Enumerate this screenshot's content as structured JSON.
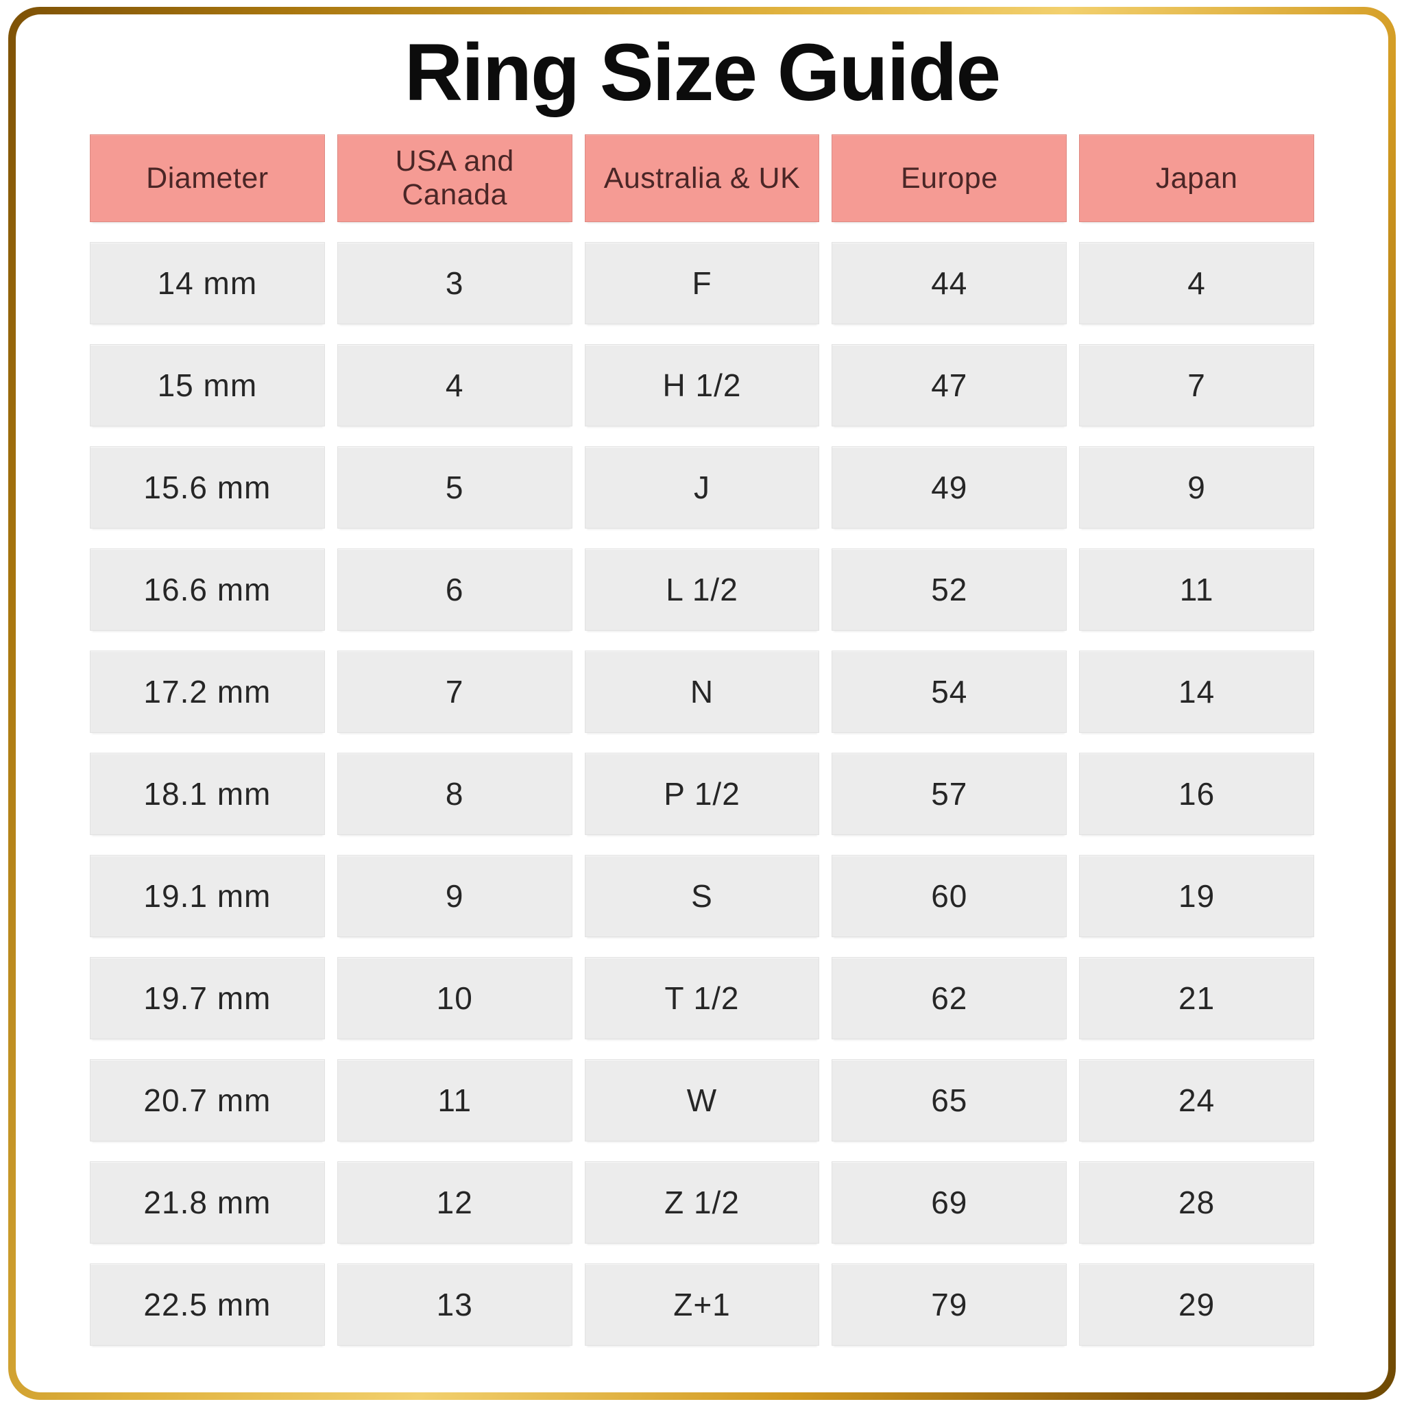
{
  "title": "Ring Size Guide",
  "chart_data": {
    "type": "table",
    "title": "Ring Size Guide",
    "headers": [
      "Diameter",
      "USA and Canada",
      "Australia & UK",
      "Europe",
      "Japan"
    ],
    "rows": [
      [
        "14 mm",
        "3",
        "F",
        "44",
        "4"
      ],
      [
        "15 mm",
        "4",
        "H 1/2",
        "47",
        "7"
      ],
      [
        "15.6 mm",
        "5",
        "J",
        "49",
        "9"
      ],
      [
        "16.6 mm",
        "6",
        "L 1/2",
        "52",
        "11"
      ],
      [
        "17.2 mm",
        "7",
        "N",
        "54",
        "14"
      ],
      [
        "18.1 mm",
        "8",
        "P 1/2",
        "57",
        "16"
      ],
      [
        "19.1 mm",
        "9",
        "S",
        "60",
        "19"
      ],
      [
        "19.7 mm",
        "10",
        "T 1/2",
        "62",
        "21"
      ],
      [
        "20.7 mm",
        "11",
        "W",
        "65",
        "24"
      ],
      [
        "21.8 mm",
        "12",
        "Z 1/2",
        "69",
        "28"
      ],
      [
        "22.5 mm",
        "13",
        "Z+1",
        "79",
        "29"
      ]
    ]
  },
  "colors": {
    "header_bg": "#F59B94",
    "header_text": "#4A2626",
    "cell_bg": "#ECECEC",
    "cell_text": "#262626",
    "title_text": "#0C0C0C",
    "gold_dark": "#7D5106",
    "gold_mid": "#D29A21",
    "gold_light": "#F2D06E"
  }
}
